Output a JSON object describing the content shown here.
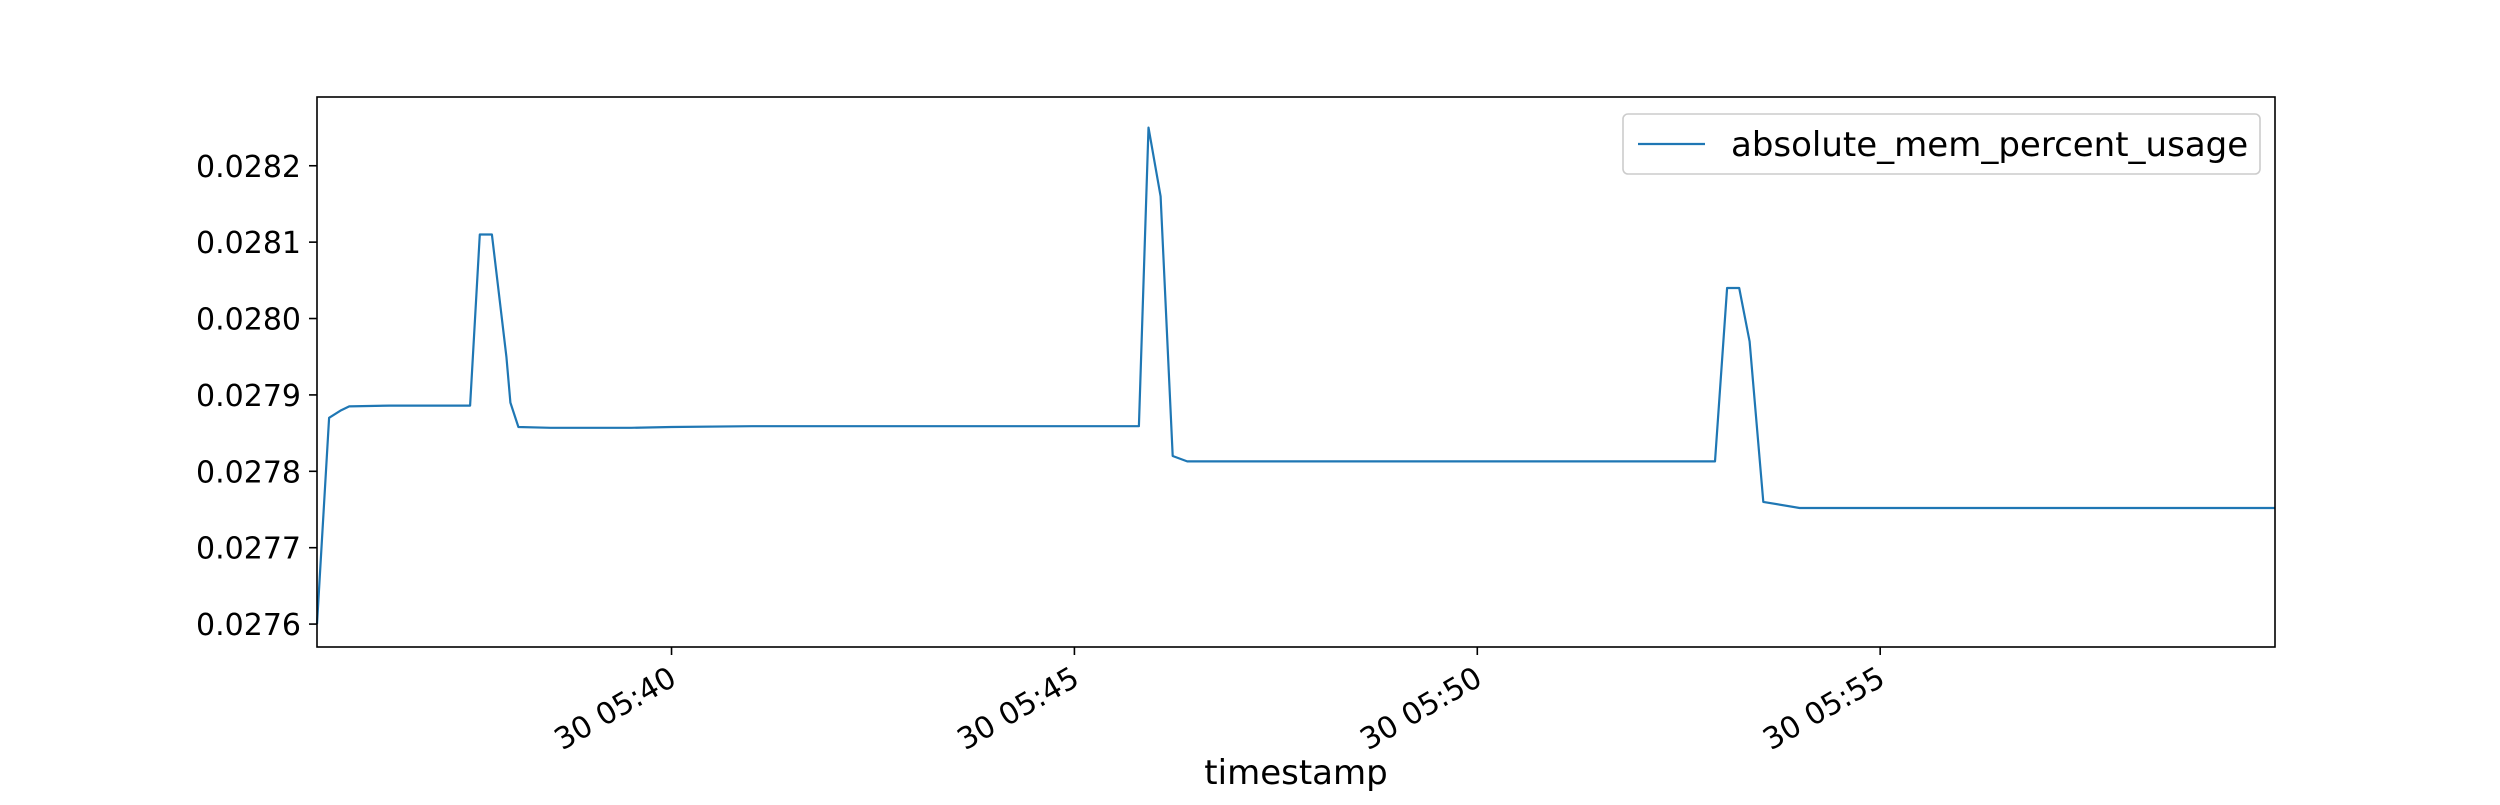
{
  "chart_data": {
    "type": "line",
    "title": "",
    "xlabel": "timestamp",
    "ylabel": "",
    "x_ticks": [
      "30 05:40",
      "30 05:45",
      "30 05:50",
      "30 05:55"
    ],
    "x_tick_minutes": [
      40,
      45,
      50,
      55
    ],
    "xlim_minutes": [
      35.6,
      59.9
    ],
    "ylim": [
      0.02757,
      0.02829
    ],
    "y_ticks": [
      "0.0276",
      "0.0277",
      "0.0278",
      "0.0279",
      "0.0280",
      "0.0281",
      "0.0282"
    ],
    "y_tick_values": [
      0.0276,
      0.0277,
      0.0278,
      0.0279,
      0.028,
      0.0281,
      0.0282
    ],
    "grid": false,
    "legend": {
      "position": "top-right",
      "entries": [
        "absolute_mem_percent_usage"
      ]
    },
    "series": [
      {
        "name": "absolute_mem_percent_usage",
        "color": "#1f77b4",
        "x_minutes": [
          35.6,
          35.75,
          35.9,
          36.0,
          36.5,
          37.0,
          37.5,
          37.5,
          37.62,
          37.77,
          37.95,
          38.0,
          38.1,
          38.5,
          39.0,
          39.5,
          40.0,
          41.0,
          42.0,
          43.0,
          44.0,
          45.0,
          45.5,
          45.8,
          45.92,
          46.07,
          46.22,
          46.4,
          47.0,
          48.0,
          49.0,
          50.0,
          51.0,
          52.0,
          52.8,
          52.95,
          53.1,
          53.25,
          53.38,
          53.55,
          54.0,
          55.0,
          56.0,
          57.0,
          58.0,
          59.0,
          59.9
        ],
        "values": [
          0.0276,
          0.02787,
          0.02788,
          0.027885,
          0.027886,
          0.027886,
          0.027886,
          0.027886,
          0.02811,
          0.02811,
          0.02795,
          0.02789,
          0.027858,
          0.027857,
          0.027857,
          0.027857,
          0.027858,
          0.027859,
          0.027859,
          0.027859,
          0.027859,
          0.027859,
          0.027859,
          0.027859,
          0.02825,
          0.02816,
          0.02782,
          0.027813,
          0.027813,
          0.027813,
          0.027813,
          0.027813,
          0.027813,
          0.027813,
          0.027813,
          0.027813,
          0.02804,
          0.02804,
          0.02797,
          0.02776,
          0.027752,
          0.027752,
          0.027752,
          0.027752,
          0.027752,
          0.027752,
          0.027752
        ]
      }
    ]
  }
}
